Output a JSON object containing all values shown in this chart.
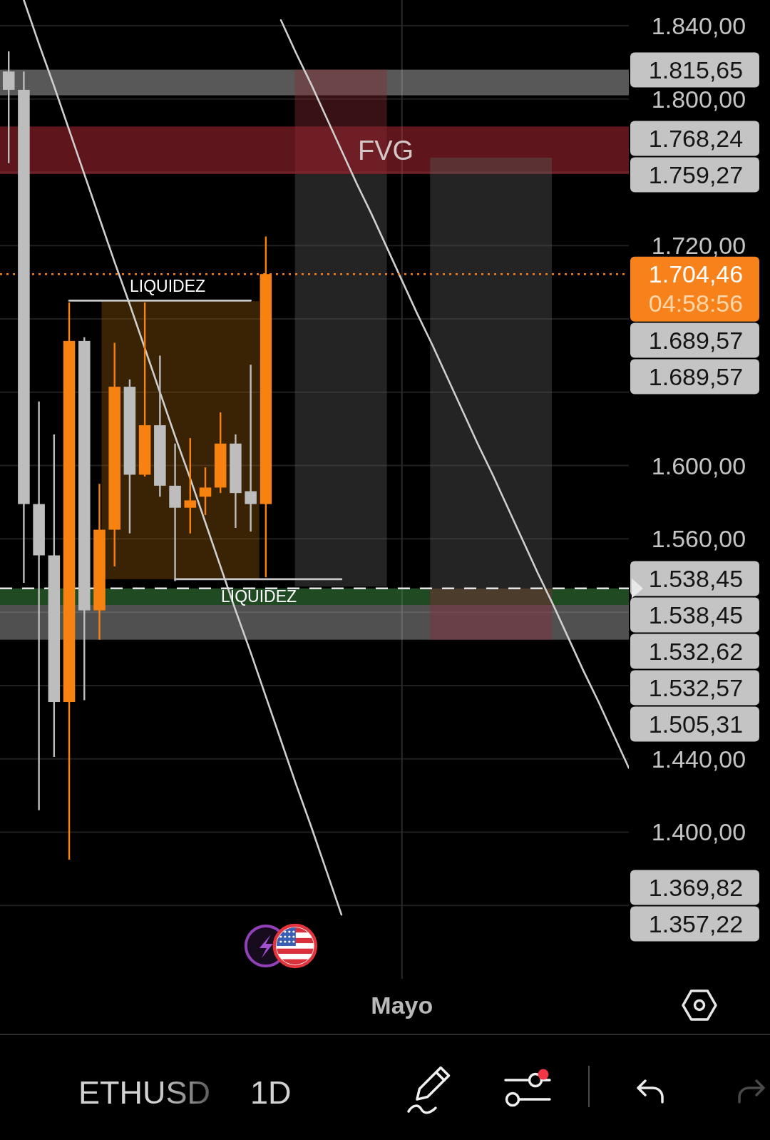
{
  "chart_data": {
    "type": "candlestick",
    "categories": [
      null,
      null,
      null,
      null,
      null,
      null,
      null,
      null,
      null,
      null,
      null,
      null,
      null,
      null,
      null,
      null,
      null,
      null,
      null,
      null,
      null,
      null,
      null,
      null,
      null,
      null,
      "Mayo",
      null,
      null,
      null,
      null,
      null,
      null,
      null,
      null,
      null,
      null,
      null,
      null,
      null,
      null,
      null
    ],
    "ohlc": [
      [
        1815,
        1826,
        1765,
        1805
      ],
      [
        1805,
        1815,
        1536,
        1579
      ],
      [
        1579,
        1635,
        1412,
        1551
      ],
      [
        1551,
        1617,
        1441,
        1471
      ],
      [
        1471,
        1689,
        1385,
        1668
      ],
      [
        1668,
        1670,
        1472,
        1521
      ],
      [
        1521,
        1590,
        1505,
        1565
      ],
      [
        1565,
        1667,
        1545,
        1643
      ],
      [
        1643,
        1647,
        1563,
        1595
      ],
      [
        1595,
        1689,
        1594,
        1622
      ],
      [
        1622,
        1660,
        1583,
        1589
      ],
      [
        1589,
        1612,
        1537,
        1577
      ],
      [
        1577,
        1615,
        1563,
        1581
      ],
      [
        1583,
        1599,
        1573,
        1588
      ],
      [
        1588,
        1629,
        1585,
        1612
      ],
      [
        1612,
        1617,
        1566,
        1585
      ],
      [
        1586,
        1655,
        1564,
        1579
      ],
      [
        1579,
        1725,
        1539,
        1704.46
      ],
      null,
      null,
      null,
      null,
      null,
      null,
      null,
      null,
      null,
      null,
      null,
      null,
      null,
      null,
      null,
      null,
      null,
      null,
      null,
      null,
      null,
      null,
      null,
      null
    ],
    "colors": [
      "#bdbdbd",
      "#bdbdbd",
      "#bdbdbd",
      "#bdbdbd",
      "#f7820f",
      "#bdbdbd",
      "#f7820f",
      "#f7820f",
      "#bdbdbd",
      "#f7820f",
      "#bdbdbd",
      "#bdbdbd",
      "#f7820f",
      "#f7820f",
      "#f7820f",
      "#bdbdbd",
      "#bdbdbd",
      "#f7820f",
      null,
      null,
      null,
      null,
      null,
      null,
      null,
      null,
      null,
      null,
      null,
      null,
      null,
      null,
      null,
      null,
      null,
      null,
      null,
      null,
      null,
      null,
      null,
      null
    ],
    "series": [
      {
        "type": "line",
        "color": "#c8c8c8",
        "values": [
          null,
          null,
          null,
          null,
          1690,
          1690,
          1690,
          1690,
          1690,
          1690,
          1690,
          1690,
          1690,
          1690,
          1690,
          1690,
          1690,
          null,
          null,
          null,
          null,
          null,
          null,
          null,
          null,
          null,
          null,
          null,
          null,
          null,
          null,
          null,
          null,
          null,
          null,
          null,
          null,
          null,
          null,
          null,
          null,
          null
        ]
      },
      {
        "type": "line",
        "color": "#c8c8c8",
        "values": [
          null,
          null,
          null,
          null,
          null,
          null,
          null,
          null,
          null,
          null,
          null,
          1538,
          1538,
          1538,
          1538,
          1538,
          1538,
          1538,
          1538,
          1538,
          1538,
          1538,
          1538,
          null,
          null,
          null,
          null,
          null,
          null,
          null,
          null,
          null,
          null,
          null,
          null,
          null,
          null,
          null,
          null,
          null,
          null,
          null
        ]
      },
      {
        "type": "line",
        "color": "#cfcfcf",
        "values": [
          null,
          1854,
          1830,
          1807,
          1783,
          1759,
          1735,
          1711,
          1688,
          1664,
          1640,
          1616,
          1593,
          1569,
          1545,
          1521,
          1498,
          1474,
          1450,
          1426,
          1403,
          1379,
          1355,
          null,
          null,
          null,
          null,
          null,
          null,
          null,
          null,
          null,
          null,
          null,
          null,
          null,
          null,
          null,
          null,
          null,
          null,
          null
        ]
      },
      {
        "type": "line",
        "color": "#cfcfcf",
        "values": [
          null,
          null,
          null,
          null,
          null,
          null,
          null,
          null,
          null,
          null,
          null,
          null,
          null,
          null,
          null,
          null,
          null,
          null,
          1843,
          1825,
          1808,
          1790,
          1772,
          1754,
          1737,
          1719,
          1701,
          1683,
          1666,
          1648,
          1630,
          1612,
          1595,
          1577,
          1559,
          1541,
          1524,
          1506,
          1488,
          1471,
          1453,
          1435
        ]
      }
    ],
    "bands": [
      {
        "axis": "y",
        "from": 1802,
        "to": 1816,
        "color": "#dcdcdc"
      },
      {
        "axis": "y",
        "from": 1759,
        "to": 1785,
        "label": "FVG",
        "color": "#eb3746"
      },
      {
        "axis": "y",
        "from": 1524,
        "to": 1533,
        "color": "#4eb955"
      },
      {
        "axis": "y",
        "from": 1505,
        "to": 1524,
        "color": "#c8c8c8"
      }
    ],
    "ylim": [
      1320,
      1854
    ],
    "yticks": [
      {
        "value": 1840,
        "label": "1.840,00"
      },
      {
        "value": 1800,
        "label": "1.800,00"
      },
      {
        "value": 1760,
        "label": null
      },
      {
        "value": 1720,
        "label": "1.720,00"
      },
      {
        "value": 1680,
        "label": null
      },
      {
        "value": 1640,
        "label": null
      },
      {
        "value": 1600,
        "label": "1.600,00"
      },
      {
        "value": 1560,
        "label": "1.560,00"
      },
      {
        "value": 1520,
        "label": null
      },
      {
        "value": 1480,
        "label": null
      },
      {
        "value": 1440,
        "label": "1.440,00"
      },
      {
        "value": 1400,
        "label": "1.400,00"
      },
      {
        "value": 1360,
        "label": null
      }
    ],
    "grid": true,
    "ref_lines": [
      {
        "axis": "y",
        "value": 1704.46,
        "label": "1.704,46",
        "color": "#f7821b",
        "line_style": "dotted"
      },
      {
        "axis": "y",
        "value": 1533,
        "color": "#e6e6e6",
        "line_style": "dashed"
      }
    ],
    "annotations": [
      "04:58:56",
      "ETHUSD",
      "1D",
      "1.815,65",
      "1.768,24",
      "1.759,27",
      "1.689,57",
      "1.689,57",
      "1.538,45",
      "1.538,45",
      "1.532,62",
      "1.532,57",
      "1.505,31",
      "1.369,82",
      "1.357,22",
      {
        "text": "LIQUIDEZ",
        "y": 1690
      },
      {
        "text": "LIQUIDEZ",
        "y": 1538
      }
    ]
  }
}
